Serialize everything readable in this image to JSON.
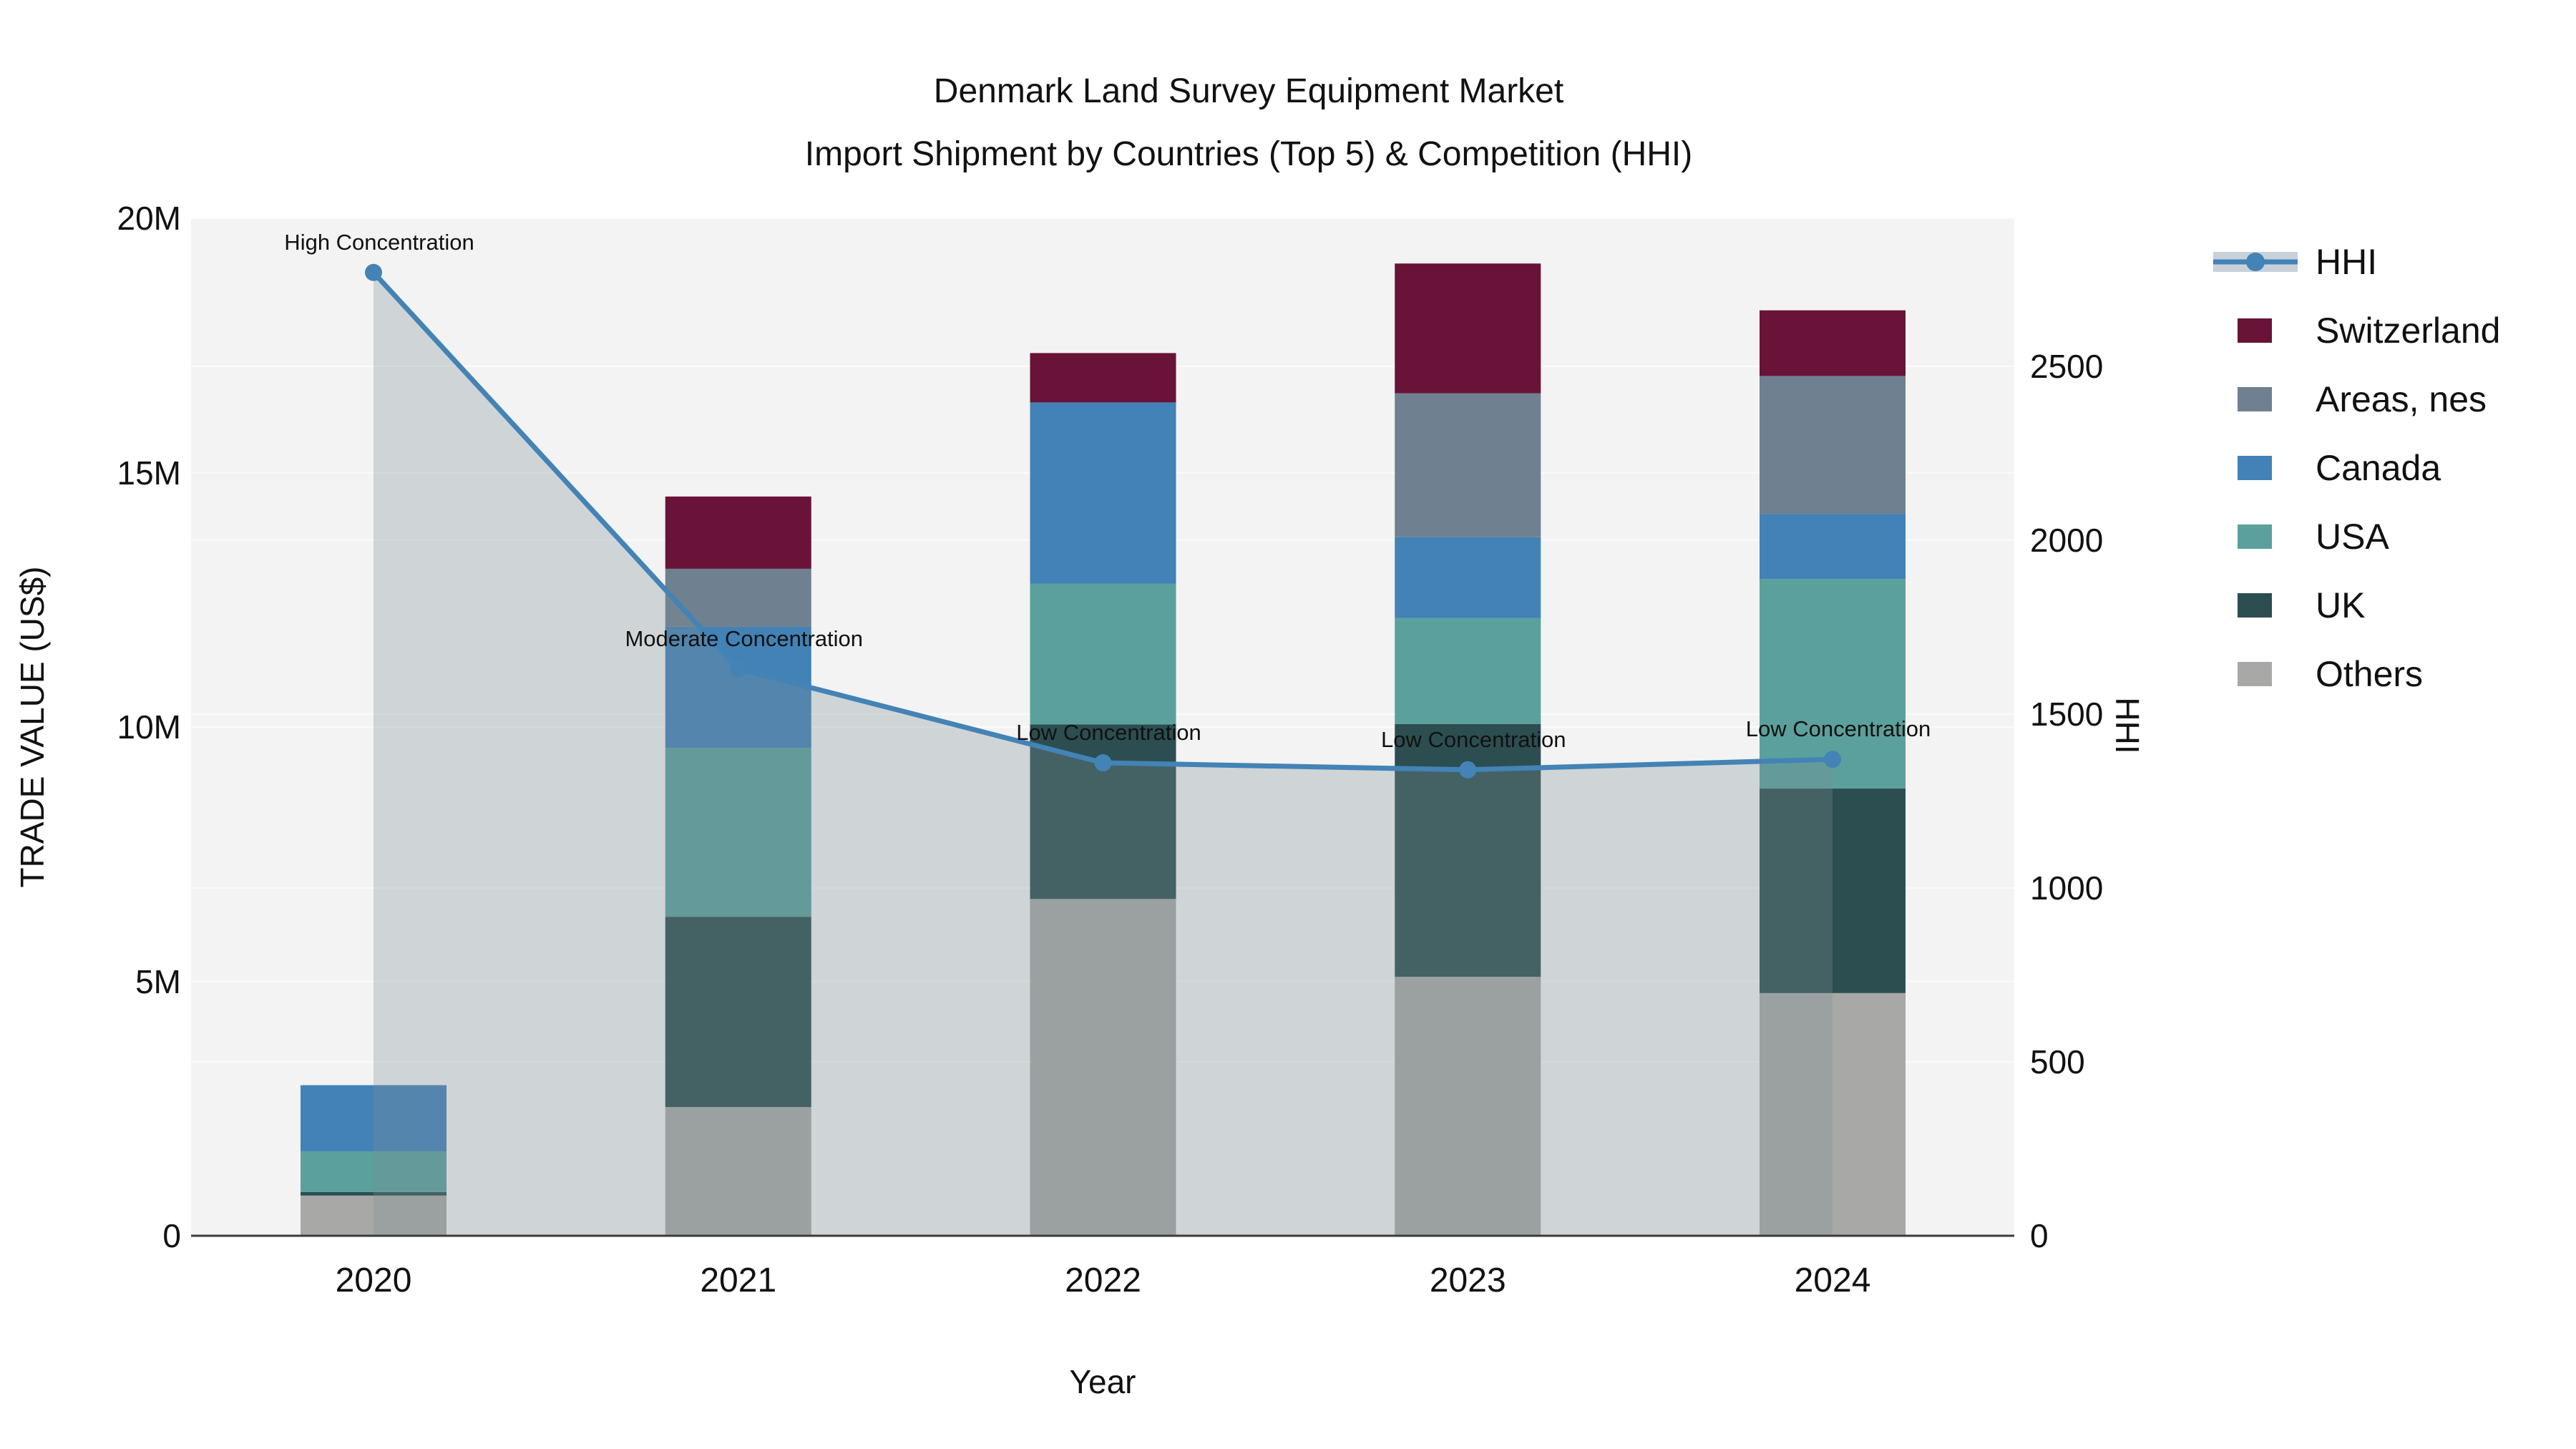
{
  "title": {
    "line1": "Denmark Land Survey Equipment Market",
    "line2": "Import Shipment by Countries (Top 5) & Competition (HHI)"
  },
  "chart_data": {
    "type": "combo-stacked-bar-and-line",
    "categories": [
      "2020",
      "2021",
      "2022",
      "2023",
      "2024"
    ],
    "bar_value_unit": "US$ millions",
    "series": [
      {
        "name": "Others",
        "color": "#a8a9a6",
        "values": [
          0.79,
          2.53,
          6.62,
          5.09,
          4.77
        ]
      },
      {
        "name": "UK",
        "color": "#2c4e50",
        "values": [
          0.07,
          3.74,
          3.43,
          4.97,
          4.02
        ]
      },
      {
        "name": "USA",
        "color": "#5ba09d",
        "values": [
          0.8,
          3.32,
          2.77,
          2.08,
          4.12
        ]
      },
      {
        "name": "Canada",
        "color": "#4282b6",
        "values": [
          1.3,
          2.38,
          3.56,
          1.59,
          1.28
        ]
      },
      {
        "name": "Areas, nes",
        "color": "#6f8090",
        "values": [
          0.0,
          1.14,
          0.0,
          2.83,
          2.71
        ]
      },
      {
        "name": "Switzerland",
        "color": "#681337",
        "values": [
          0.0,
          1.42,
          0.97,
          2.55,
          1.29
        ]
      }
    ],
    "line_series": {
      "name": "HHI",
      "color": "#4383b6",
      "fill_color": "rgba(125,142,148,0.30)",
      "values": [
        2770,
        1630,
        1360,
        1340,
        1370
      ]
    },
    "annotations": [
      {
        "text": "High Concentration",
        "category": "2020"
      },
      {
        "text": "Moderate Concentration",
        "category": "2021"
      },
      {
        "text": "Low Concentration",
        "category": "2022"
      },
      {
        "text": "Low Concentration",
        "category": "2023"
      },
      {
        "text": "Low Concentration",
        "category": "2024"
      }
    ],
    "axes": {
      "x_title": "Year",
      "y_left_title": "TRADE VALUE (US$)",
      "y_left_ticks": [
        {
          "label": "0",
          "value": 0
        },
        {
          "label": "5M",
          "value": 5
        },
        {
          "label": "10M",
          "value": 10
        },
        {
          "label": "15M",
          "value": 15
        },
        {
          "label": "20M",
          "value": 20
        }
      ],
      "y_left_range_millions": [
        0,
        20
      ],
      "y_right_title": "HHI",
      "y_right_ticks": [
        {
          "label": "0",
          "value": 0
        },
        {
          "label": "500",
          "value": 500
        },
        {
          "label": "1000",
          "value": 1000
        },
        {
          "label": "1500",
          "value": 1500
        },
        {
          "label": "2000",
          "value": 2000
        },
        {
          "label": "2500",
          "value": 2500
        }
      ],
      "grid": true,
      "plot_background": "#f2f3f2",
      "gridline_color": "#fafbfb",
      "axis_line_color": "#3b3b3b"
    },
    "legend_position": "right"
  },
  "legend": {
    "items": [
      {
        "label": "HHI",
        "type": "line",
        "color": "#4383b6",
        "band_color": "#c8d1da"
      },
      {
        "label": "Switzerland",
        "type": "swatch",
        "color": "#681337"
      },
      {
        "label": "Areas, nes",
        "type": "swatch",
        "color": "#6f8090"
      },
      {
        "label": "Canada",
        "type": "swatch",
        "color": "#4282b6"
      },
      {
        "label": "USA",
        "type": "swatch",
        "color": "#5ba09d"
      },
      {
        "label": "UK",
        "type": "swatch",
        "color": "#2c4e50"
      },
      {
        "label": "Others",
        "type": "swatch",
        "color": "#a8a9a6"
      }
    ]
  }
}
